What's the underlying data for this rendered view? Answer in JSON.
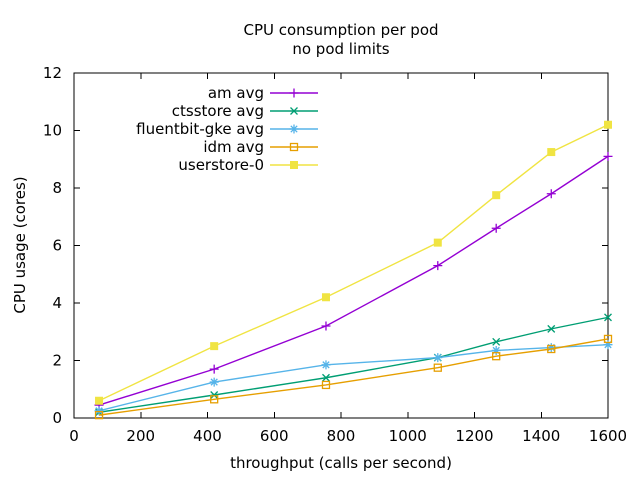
{
  "chart_data": {
    "type": "line",
    "title": "CPU consumption per pod",
    "subtitle": "no pod limits",
    "xlabel": "throughput (calls per second)",
    "ylabel": "CPU usage (cores)",
    "xlim": [
      0,
      1600
    ],
    "ylim": [
      0,
      12
    ],
    "xticks": [
      0,
      200,
      400,
      600,
      800,
      1000,
      1200,
      1400,
      1600
    ],
    "yticks": [
      0,
      2,
      4,
      6,
      8,
      10,
      12
    ],
    "grid": false,
    "legend_position": "top-center-inside",
    "background_color": "#ffffff",
    "text_color": "#000000",
    "border_color": "#000000",
    "x": [
      75,
      420,
      755,
      1090,
      1265,
      1430,
      1600
    ],
    "series": [
      {
        "name": "am avg",
        "color": "#9400d3",
        "marker": "plus",
        "values": [
          0.45,
          1.7,
          3.2,
          5.3,
          6.6,
          7.8,
          9.1
        ]
      },
      {
        "name": "ctsstore avg",
        "color": "#009e73",
        "marker": "x",
        "values": [
          0.2,
          0.8,
          1.4,
          2.1,
          2.65,
          3.1,
          3.5
        ]
      },
      {
        "name": "fluentbit-gke avg",
        "color": "#56b4e9",
        "marker": "asterisk",
        "values": [
          0.25,
          1.25,
          1.85,
          2.1,
          2.35,
          2.45,
          2.55
        ]
      },
      {
        "name": "idm avg",
        "color": "#e69f00",
        "marker": "open-square",
        "values": [
          0.1,
          0.65,
          1.15,
          1.75,
          2.15,
          2.4,
          2.75
        ]
      },
      {
        "name": "userstore-0",
        "color": "#f0e442",
        "marker": "filled-square",
        "values": [
          0.6,
          2.5,
          4.2,
          6.1,
          7.75,
          9.25,
          10.2
        ]
      }
    ]
  }
}
